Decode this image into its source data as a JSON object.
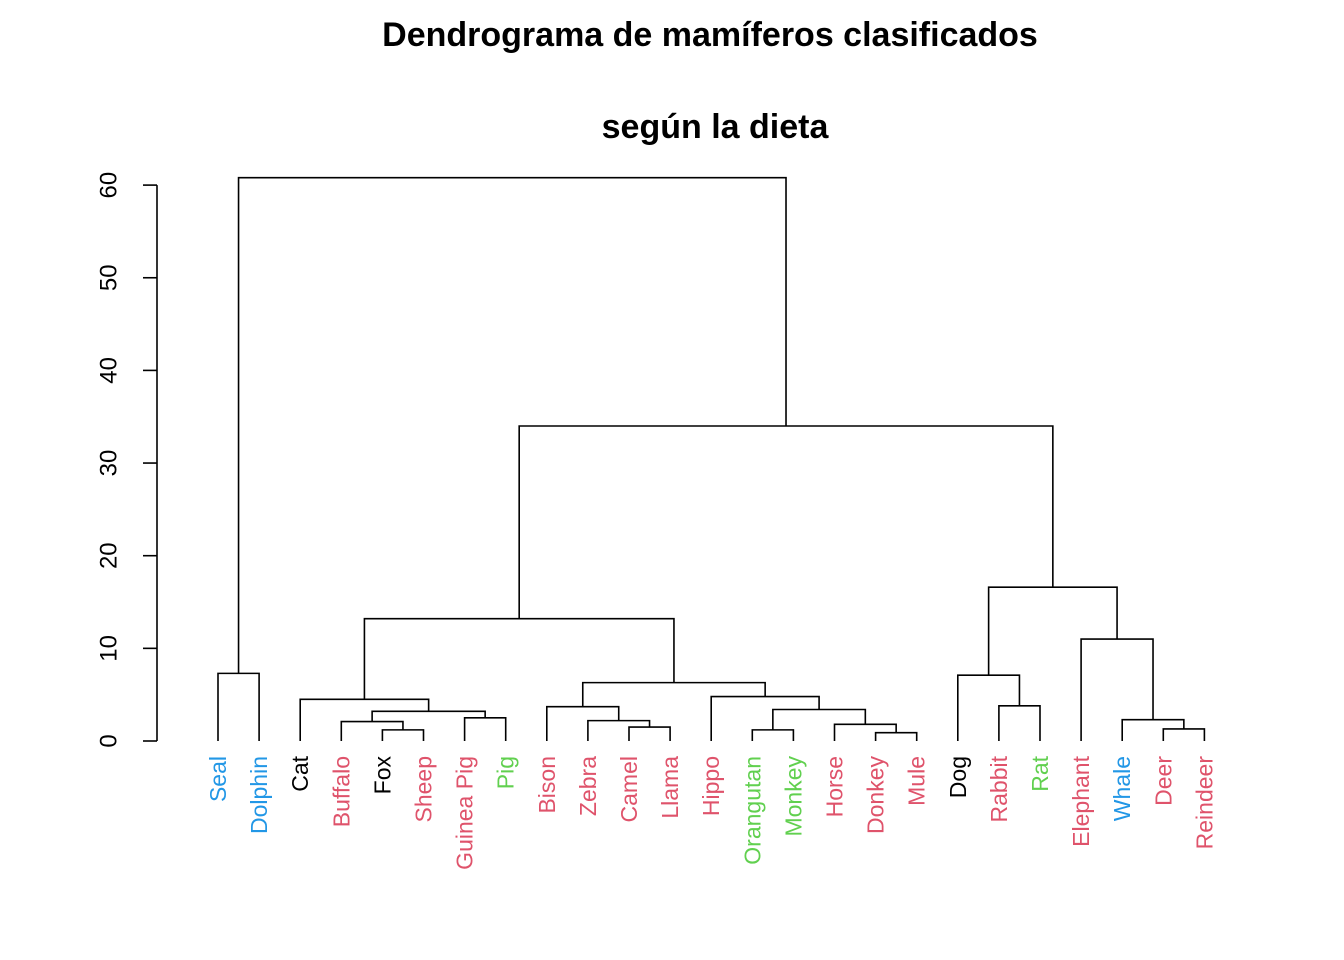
{
  "chart_data": {
    "type": "dendrogram",
    "title_lines": [
      "Dendrograma de mamíferos clasificados",
      "según la dieta"
    ],
    "xlabel": "",
    "ylabel": "",
    "ylim": [
      0,
      60
    ],
    "yticks": [
      0,
      10,
      20,
      30,
      40,
      50,
      60
    ],
    "grid": false,
    "leaves": [
      {
        "label": "Seal",
        "group": "blue"
      },
      {
        "label": "Dolphin",
        "group": "blue"
      },
      {
        "label": "Cat",
        "group": "black"
      },
      {
        "label": "Buffalo",
        "group": "red"
      },
      {
        "label": "Fox",
        "group": "black"
      },
      {
        "label": "Sheep",
        "group": "red"
      },
      {
        "label": "Guinea Pig",
        "group": "red"
      },
      {
        "label": "Pig",
        "group": "green"
      },
      {
        "label": "Bison",
        "group": "red"
      },
      {
        "label": "Zebra",
        "group": "red"
      },
      {
        "label": "Camel",
        "group": "red"
      },
      {
        "label": "Llama",
        "group": "red"
      },
      {
        "label": "Hippo",
        "group": "red"
      },
      {
        "label": "Orangutan",
        "group": "green"
      },
      {
        "label": "Monkey",
        "group": "green"
      },
      {
        "label": "Horse",
        "group": "red"
      },
      {
        "label": "Donkey",
        "group": "red"
      },
      {
        "label": "Mule",
        "group": "red"
      },
      {
        "label": "Dog",
        "group": "black"
      },
      {
        "label": "Rabbit",
        "group": "red"
      },
      {
        "label": "Rat",
        "group": "green"
      },
      {
        "label": "Elephant",
        "group": "red"
      },
      {
        "label": "Whale",
        "group": "blue"
      },
      {
        "label": "Deer",
        "group": "red"
      },
      {
        "label": "Reindeer",
        "group": "red"
      }
    ],
    "group_colors": {
      "black": "#000000",
      "red": "#DF536B",
      "green": "#61D04F",
      "blue": "#2297E6"
    },
    "merges": [
      [
        -1,
        -2,
        7.3
      ],
      [
        -5,
        -6,
        1.2
      ],
      [
        -4,
        2,
        2.1
      ],
      [
        -7,
        -8,
        2.5
      ],
      [
        3,
        4,
        3.2
      ],
      [
        -3,
        5,
        4.5
      ],
      [
        -11,
        -12,
        1.5
      ],
      [
        -10,
        7,
        2.2
      ],
      [
        -9,
        8,
        3.7
      ],
      [
        -17,
        -18,
        0.9
      ],
      [
        -16,
        10,
        1.8
      ],
      [
        -14,
        -15,
        1.2
      ],
      [
        12,
        11,
        3.4
      ],
      [
        -13,
        13,
        4.8
      ],
      [
        9,
        14,
        6.3
      ],
      [
        6,
        15,
        13.2
      ],
      [
        -20,
        -21,
        3.8
      ],
      [
        -19,
        17,
        7.1
      ],
      [
        -24,
        -25,
        1.3
      ],
      [
        -23,
        19,
        2.3
      ],
      [
        -22,
        20,
        11.0
      ],
      [
        18,
        21,
        16.6
      ],
      [
        16,
        22,
        34.0
      ],
      [
        1,
        23,
        60.8
      ]
    ]
  }
}
